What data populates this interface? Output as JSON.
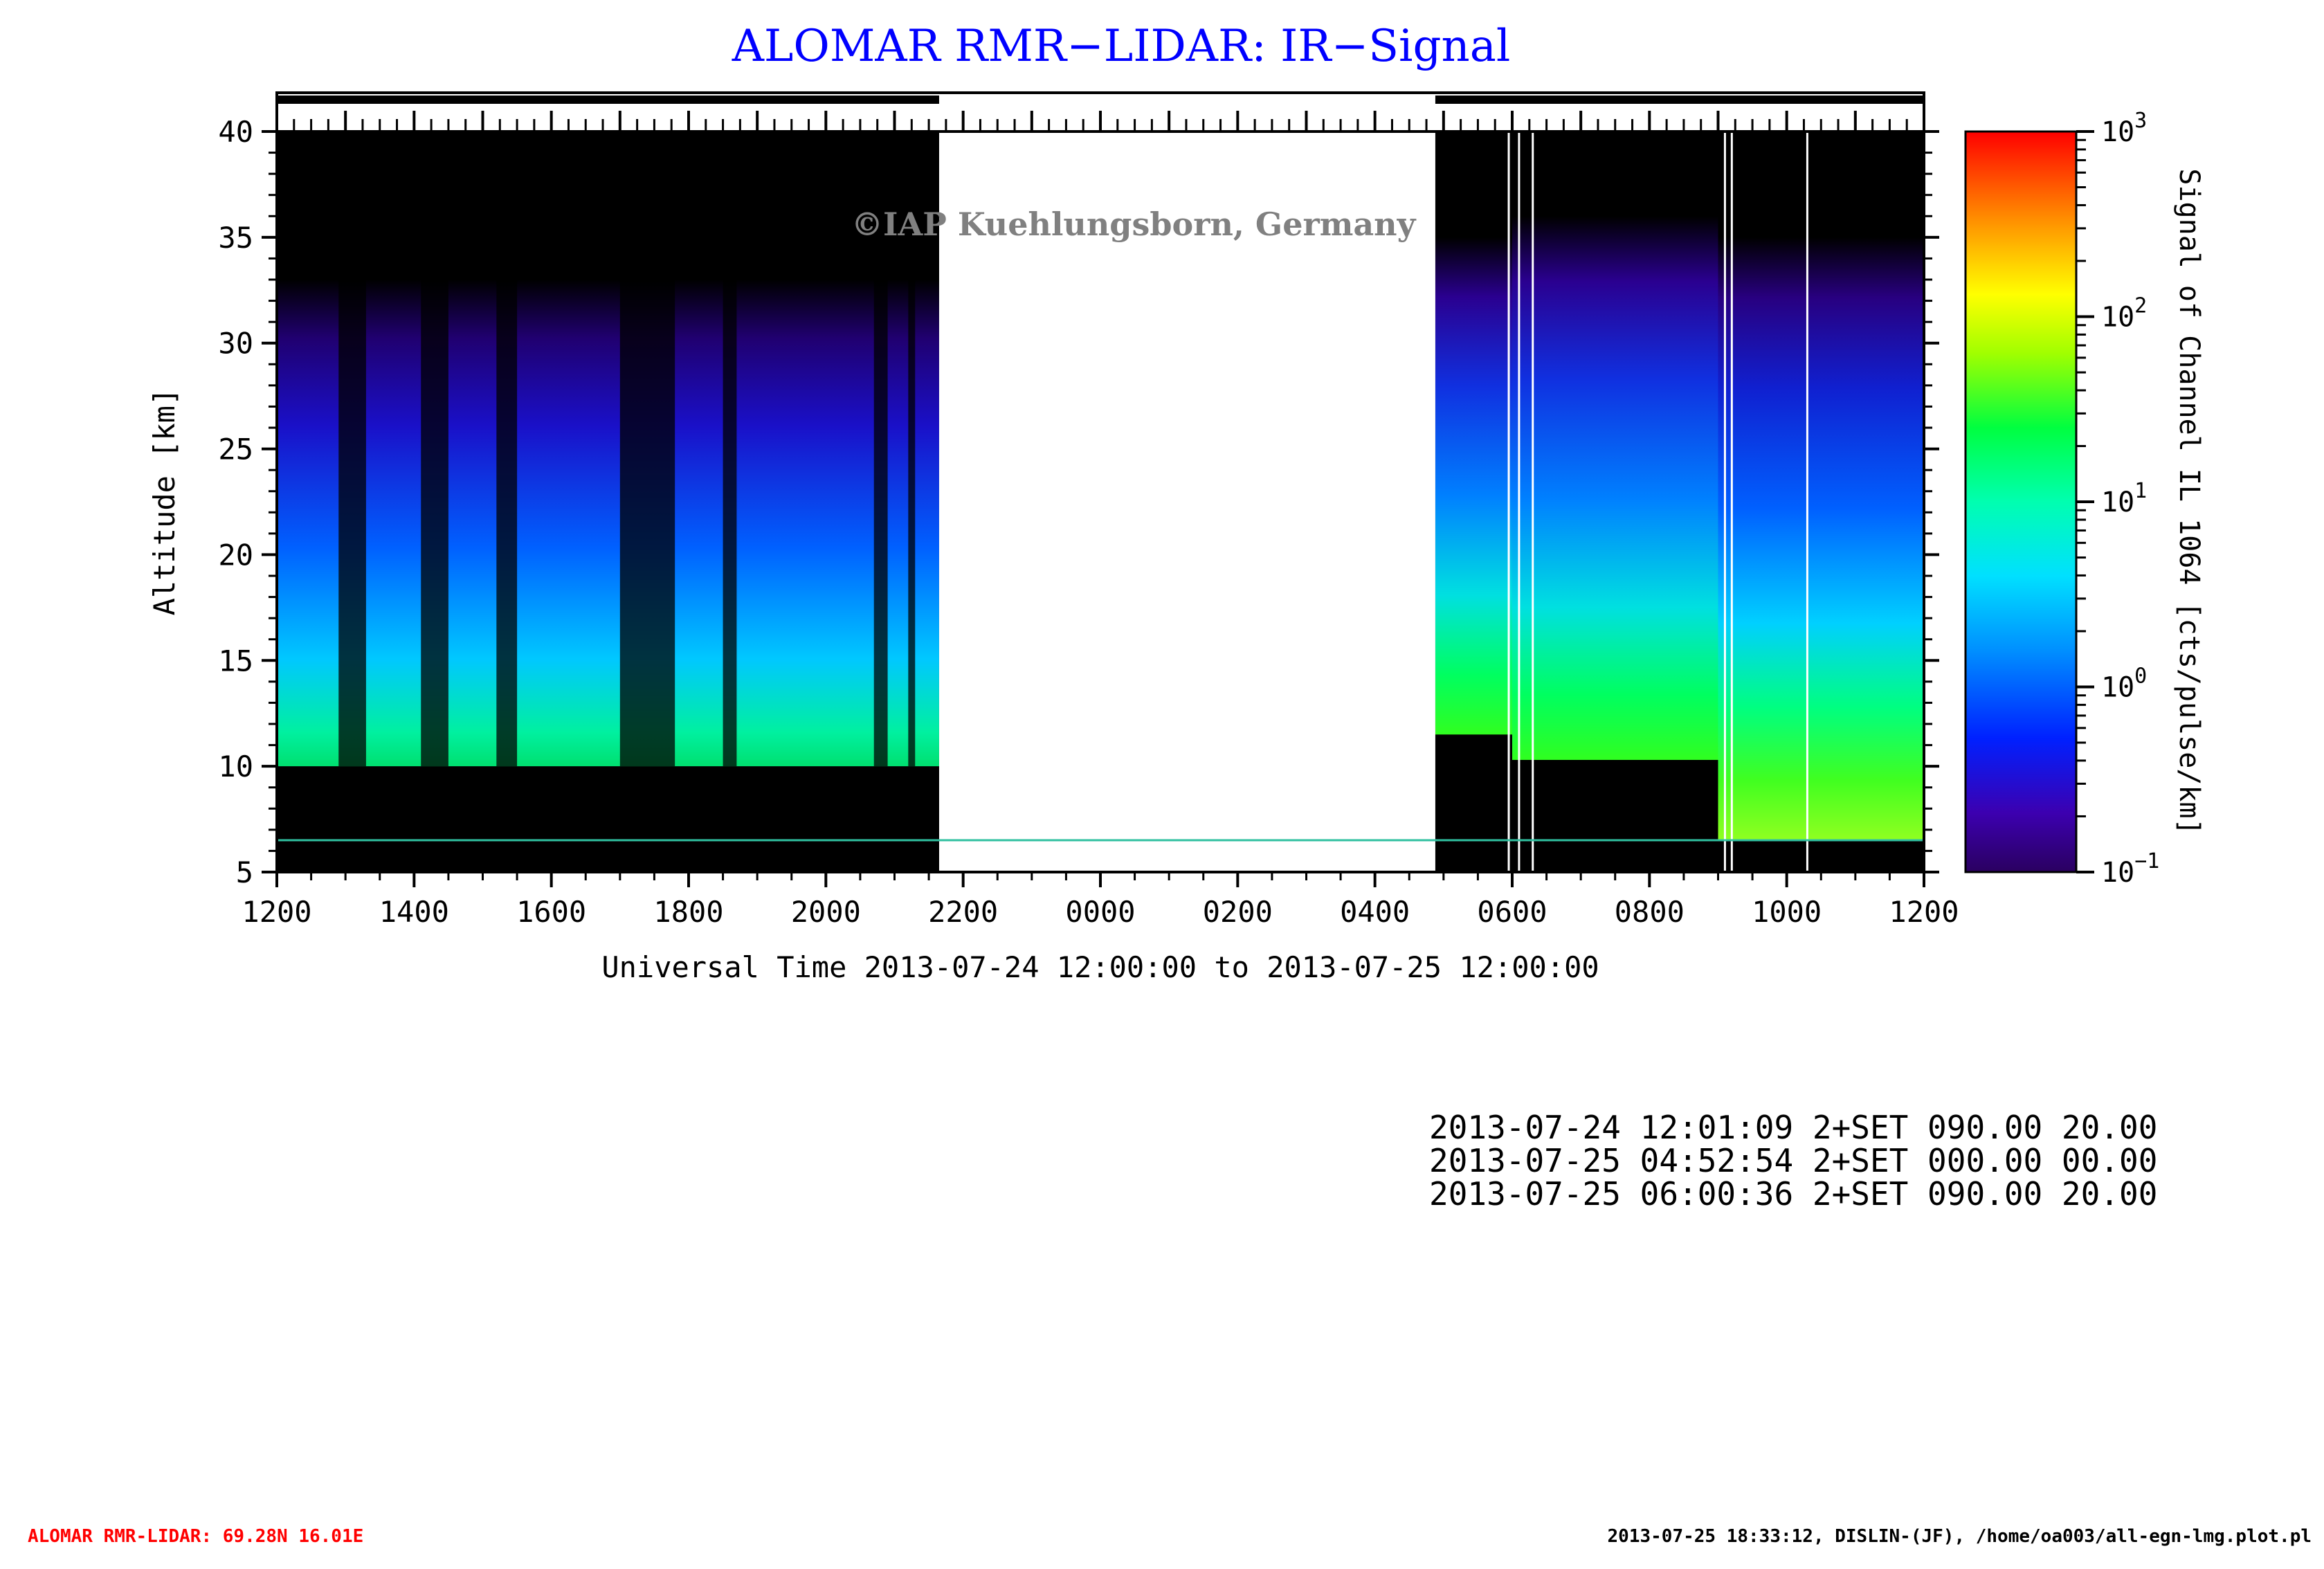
{
  "title": "ALOMAR RMR−LIDAR: IR−Signal",
  "watermark": "©IAP Kuehlungsborn, Germany",
  "colors": {
    "title": "#0000ff",
    "no_data": "#ffffff",
    "background_signal": "#000000",
    "footer_left": "#ff0000"
  },
  "chart_data": {
    "type": "heatmap",
    "title": "ALOMAR RMR−LIDAR: IR−Signal",
    "xlabel": "Universal Time 2013-07-24 12:00:00 to 2013-07-25 12:00:00",
    "ylabel": "Altitude [km]",
    "colorbar_label": "Signal of Channel IL 1064 [cts/pulse/km]",
    "xlim": [
      0,
      24
    ],
    "ylim": [
      5,
      40
    ],
    "x_tick_labels": [
      "1200",
      "1400",
      "1600",
      "1800",
      "2000",
      "2200",
      "0000",
      "0200",
      "0400",
      "0600",
      "0800",
      "1000",
      "1200"
    ],
    "y_ticks": [
      5,
      10,
      15,
      20,
      25,
      30,
      35,
      40
    ],
    "colorbar": {
      "scale": "log",
      "range": [
        0.1,
        1000
      ],
      "ticks": [
        {
          "base": "10",
          "exp": "3"
        },
        {
          "base": "10",
          "exp": "2"
        },
        {
          "base": "10",
          "exp": "1"
        },
        {
          "base": "10",
          "exp": "0"
        },
        {
          "base": "10",
          "exp": "−1"
        }
      ]
    },
    "measurement_periods": [
      {
        "start_h": 0.0,
        "end_h": 9.65,
        "lower_alt_km": 10.0
      },
      {
        "start_h": 16.88,
        "end_h": 18.0,
        "lower_alt_km": 11.5
      },
      {
        "start_h": 18.0,
        "end_h": 21.0,
        "lower_alt_km": 10.3
      },
      {
        "start_h": 21.0,
        "end_h": 24.0,
        "lower_alt_km": 6.5
      }
    ],
    "no_data_period": {
      "start_h": 9.65,
      "end_h": 16.88
    }
  },
  "info_lines": [
    "2013-07-24 12:01:09 2+SET 090.00 20.00",
    "2013-07-25 04:52:54 2+SET 000.00 00.00",
    "2013-07-25 06:00:36 2+SET 090.00 20.00"
  ],
  "footer": {
    "left": "ALOMAR RMR-LIDAR: 69.28N 16.01E",
    "right": "2013-07-25 18:33:12, DISLIN-(JF), /home/oa003/all-egn-lmg.plot.pl"
  }
}
